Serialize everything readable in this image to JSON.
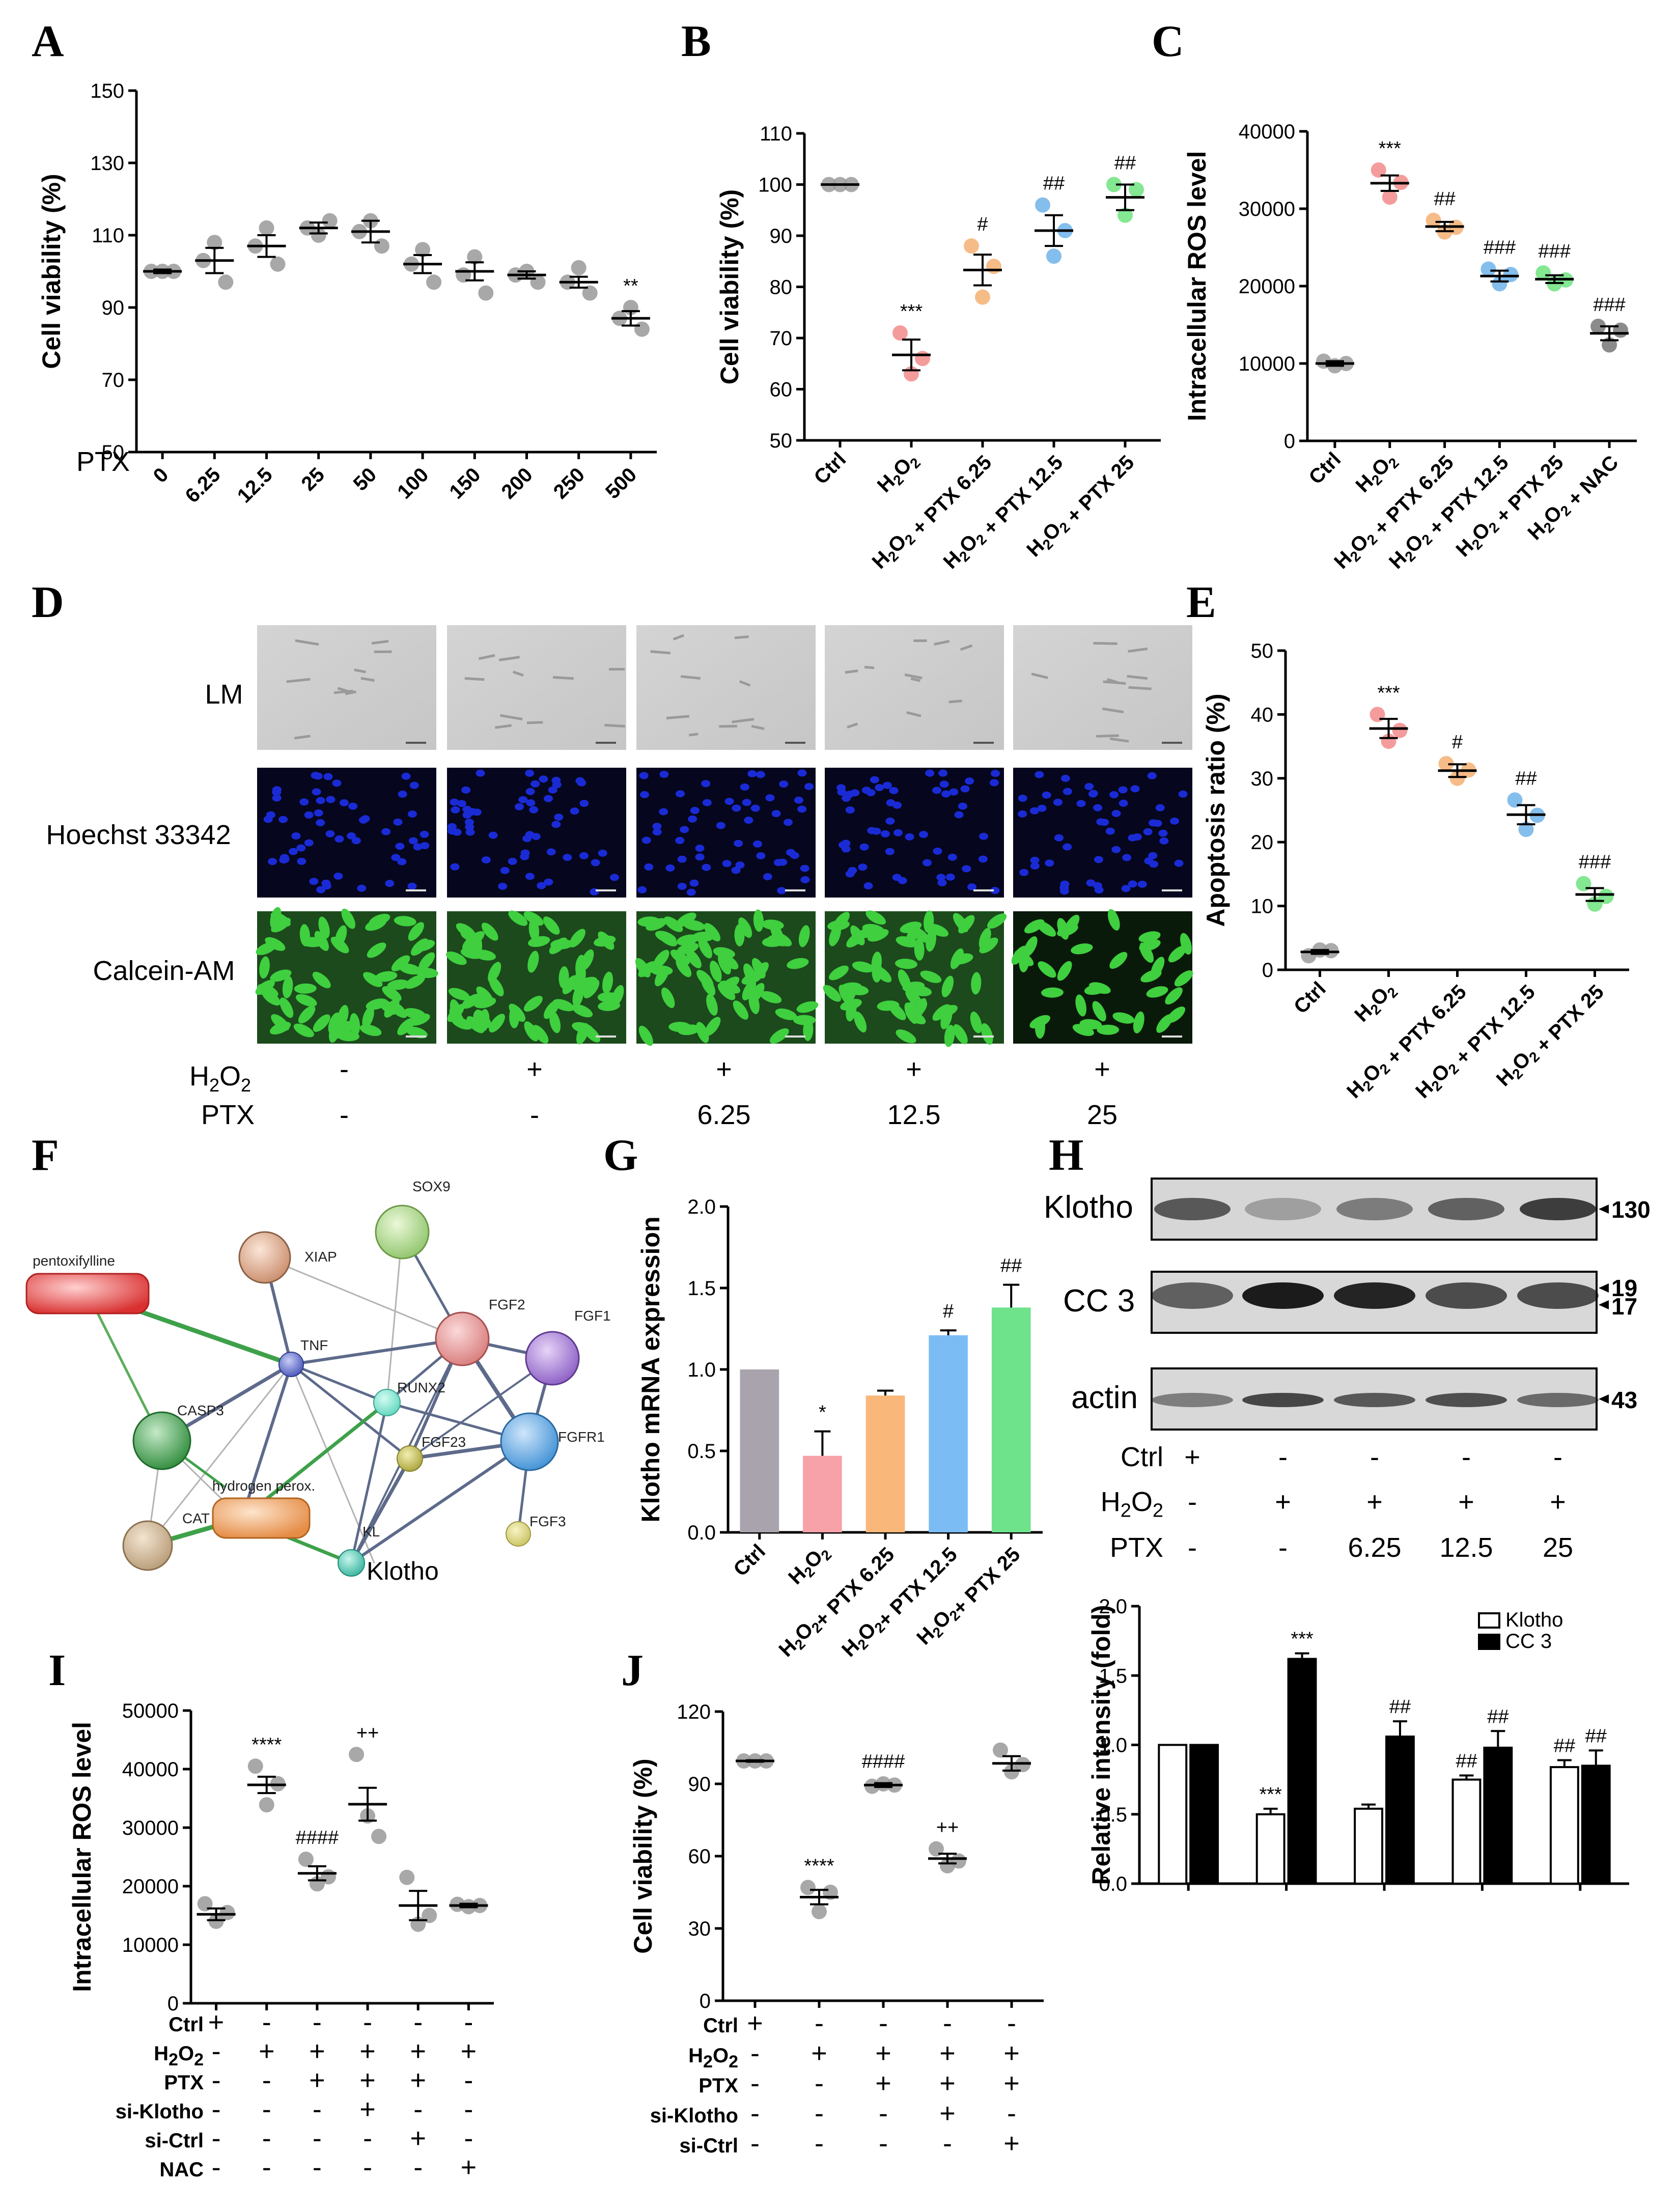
{
  "panels": {
    "A": "A",
    "B": "B",
    "C": "C",
    "D": "D",
    "E": "E",
    "F": "F",
    "G": "G",
    "H": "H",
    "I": "I",
    "J": "J"
  },
  "chart_data": [
    {
      "panel": "A",
      "type": "scatter",
      "ylabel": "Cell viability (%)",
      "xlabel": "PTX",
      "ylim": [
        50,
        150
      ],
      "yticks": [
        50,
        70,
        90,
        110,
        130,
        150
      ],
      "categories": [
        "0",
        "6.25",
        "12.5",
        "25",
        "50",
        "100",
        "150",
        "200",
        "250",
        "500"
      ],
      "means": [
        100,
        103,
        107,
        112,
        111,
        102,
        100,
        99,
        97,
        87
      ],
      "sems": [
        0.5,
        3.5,
        3,
        1.5,
        3,
        2.5,
        2.5,
        1,
        1.5,
        2
      ],
      "points": [
        [
          100,
          100,
          100
        ],
        [
          103,
          108,
          97
        ],
        [
          107,
          112,
          102
        ],
        [
          112,
          110,
          114
        ],
        [
          111,
          114,
          107
        ],
        [
          102,
          106,
          97
        ],
        [
          99,
          104,
          94
        ],
        [
          99,
          100,
          97
        ],
        [
          97,
          101,
          94
        ],
        [
          87,
          90,
          84
        ]
      ],
      "sig": [
        "",
        "",
        "",
        "",
        "",
        "",
        "",
        "",
        "",
        "**"
      ],
      "colors": [
        "#999999",
        "#999999",
        "#999999",
        "#999999",
        "#999999",
        "#999999",
        "#999999",
        "#999999",
        "#999999",
        "#999999"
      ]
    },
    {
      "panel": "B",
      "type": "scatter",
      "ylabel": "Cell viability (%)",
      "ylim": [
        50,
        110
      ],
      "yticks": [
        50,
        60,
        70,
        80,
        90,
        100,
        110
      ],
      "categories": [
        "Ctrl",
        "H2O2",
        "H2O2 + PTX 6.25",
        "H2O2 + PTX 12.5",
        "H2O2 + PTX 25"
      ],
      "means": [
        100,
        66.7,
        83.3,
        91,
        97.5
      ],
      "sems": [
        0,
        3,
        3,
        3,
        2.5
      ],
      "points": [
        [
          100,
          100,
          100
        ],
        [
          71,
          63,
          66
        ],
        [
          88,
          78,
          84
        ],
        [
          96,
          86,
          91
        ],
        [
          100,
          94,
          99
        ]
      ],
      "sig": [
        "",
        "***",
        "#",
        "##",
        "##"
      ],
      "colors": [
        "#9b9b9b",
        "#f28b8b",
        "#f5b073",
        "#6fb3ea",
        "#6ee37f"
      ]
    },
    {
      "panel": "C",
      "type": "scatter",
      "ylabel": "Intracellular ROS level",
      "ylim": [
        0,
        40000
      ],
      "yticks": [
        0,
        10000,
        20000,
        30000,
        40000
      ],
      "categories": [
        "Ctrl",
        "H2O2",
        "H2O2 + PTX 6.25",
        "H2O2 + PTX 12.5",
        "H2O2 + PTX 25",
        "H2O2 + NAC"
      ],
      "means": [
        10000,
        33300,
        27700,
        21300,
        20900,
        13900
      ],
      "sems": [
        300,
        1000,
        600,
        700,
        500,
        900
      ],
      "points": [
        [
          10300,
          9700,
          10000
        ],
        [
          35000,
          31500,
          33400
        ],
        [
          28500,
          27000,
          27600
        ],
        [
          22200,
          20300,
          21500
        ],
        [
          21700,
          20300,
          20800
        ],
        [
          14800,
          12400,
          14300
        ]
      ],
      "sig": [
        "",
        "***",
        "##",
        "###",
        "###",
        "###"
      ],
      "colors": [
        "#9b9b9b",
        "#f28b8b",
        "#f5b073",
        "#6fb3ea",
        "#6ee37f",
        "#777777"
      ]
    },
    {
      "panel": "E",
      "type": "scatter",
      "ylabel": "Apoptosis ratio (%)",
      "ylim": [
        0,
        50
      ],
      "yticks": [
        0,
        10,
        20,
        30,
        40,
        50
      ],
      "categories": [
        "Ctrl",
        "H2O2",
        "H2O2 + PTX 6.25",
        "H2O2 + PTX 12.5",
        "H2O2 + PTX 25"
      ],
      "means": [
        2.8,
        37.8,
        31.2,
        24.3,
        11.8
      ],
      "sems": [
        0.3,
        1.5,
        1,
        1.5,
        1
      ],
      "points": [
        [
          2.2,
          3.1,
          3
        ],
        [
          40,
          35.8,
          37.5
        ],
        [
          32.3,
          30,
          31.3
        ],
        [
          26.6,
          22,
          24.2
        ],
        [
          13.5,
          10.3,
          11.5
        ]
      ],
      "sig": [
        "",
        "***",
        "#",
        "##",
        "###"
      ],
      "colors": [
        "#9b9b9b",
        "#f28b8b",
        "#f5b073",
        "#6fb3ea",
        "#6ee37f"
      ]
    },
    {
      "panel": "G",
      "type": "bar",
      "ylabel": "Klotho mRNA expression",
      "ylim": [
        0,
        2.0
      ],
      "yticks": [
        "0.0",
        "0.5",
        "1.0",
        "1.5",
        "2.0"
      ],
      "categories": [
        "Ctrl",
        "H2O2",
        "H2O2+ PTX 6.25",
        "H2O2+ PTX 12.5",
        "H2O2+ PTX 25"
      ],
      "values": [
        1.0,
        0.47,
        0.84,
        1.21,
        1.38
      ],
      "errors": [
        0,
        0.15,
        0.03,
        0.03,
        0.14
      ],
      "sig": [
        "",
        "*",
        "",
        "#",
        "##"
      ],
      "colors": [
        "#a9a3ad",
        "#f7a1a8",
        "#f9b87a",
        "#7cbcf5",
        "#6ee38c"
      ]
    },
    {
      "panel": "H",
      "type": "bar",
      "ylabel": "Relative intensity  (fold)",
      "ylim": [
        0,
        2.0
      ],
      "yticks": [
        "0.0",
        "0.5",
        "1.0",
        "1.5",
        "2.0"
      ],
      "categories": [
        "Ctrl",
        "H2O2",
        "H2O2 + PTX 6.25",
        "H2O2 + PTX 12.5",
        "H2O2 + PTX 25"
      ],
      "series": [
        {
          "name": "Klotho",
          "values": [
            1.0,
            0.5,
            0.54,
            0.75,
            0.84
          ],
          "errors": [
            0,
            0.04,
            0.03,
            0.03,
            0.05
          ],
          "sig": [
            "",
            "***",
            "",
            "##",
            "##"
          ],
          "color": "#ffffff"
        },
        {
          "name": "CC 3",
          "values": [
            1.0,
            1.62,
            1.06,
            0.98,
            0.85
          ],
          "errors": [
            0,
            0.04,
            0.11,
            0.12,
            0.11
          ],
          "sig": [
            "",
            "***",
            "##",
            "##",
            "##"
          ],
          "color": "#000000"
        }
      ]
    },
    {
      "panel": "I",
      "type": "scatter",
      "ylabel": "Intracellular ROS level",
      "ylim": [
        0,
        50000
      ],
      "yticks": [
        0,
        10000,
        20000,
        30000,
        40000,
        50000
      ],
      "categories": [
        "1",
        "2",
        "3",
        "4",
        "5",
        "6"
      ],
      "means": [
        15200,
        37300,
        22200,
        34000,
        16700,
        16700
      ],
      "sems": [
        1000,
        1400,
        1200,
        2800,
        2500,
        300
      ],
      "points": [
        [
          17000,
          14000,
          15500
        ],
        [
          40500,
          33900,
          37500
        ],
        [
          24600,
          20400,
          21600
        ],
        [
          42500,
          32000,
          28500
        ],
        [
          21500,
          13500,
          15000
        ],
        [
          16900,
          16500,
          16700
        ]
      ],
      "sig": [
        "",
        "****",
        "####",
        "++",
        "",
        ""
      ],
      "colors": [
        "#999999",
        "#999999",
        "#999999",
        "#999999",
        "#999999",
        "#999999"
      ],
      "rows": [
        {
          "label": "Ctrl",
          "vals": [
            "+",
            "-",
            "-",
            "-",
            "-",
            "-"
          ]
        },
        {
          "label": "H2O2",
          "vals": [
            "-",
            "+",
            "+",
            "+",
            "+",
            "+"
          ]
        },
        {
          "label": "PTX",
          "vals": [
            "-",
            "-",
            "+",
            "+",
            "+",
            "-"
          ]
        },
        {
          "label": "si-Klotho",
          "vals": [
            "-",
            "-",
            "-",
            "+",
            "-",
            "-"
          ]
        },
        {
          "label": "si-Ctrl",
          "vals": [
            "-",
            "-",
            "-",
            "-",
            "+",
            "-"
          ]
        },
        {
          "label": "NAC",
          "vals": [
            "-",
            "-",
            "-",
            "-",
            "-",
            "+"
          ]
        }
      ]
    },
    {
      "panel": "J",
      "type": "scatter",
      "ylabel": "Cell viability (%)",
      "ylim": [
        0,
        120
      ],
      "yticks": [
        0,
        30,
        60,
        90,
        120
      ],
      "categories": [
        "1",
        "2",
        "3",
        "4",
        "5"
      ],
      "means": [
        99.5,
        43,
        89.5,
        59,
        98.5
      ],
      "sems": [
        0.3,
        3,
        0.8,
        2,
        3
      ],
      "points": [
        [
          99.5,
          99.5,
          99.5
        ],
        [
          47,
          37,
          45
        ],
        [
          89,
          90,
          89.5
        ],
        [
          63,
          56,
          58
        ],
        [
          104,
          95,
          98
        ]
      ],
      "sig": [
        "",
        "****",
        "####",
        "++",
        ""
      ],
      "colors": [
        "#999999",
        "#999999",
        "#999999",
        "#999999",
        "#999999"
      ],
      "rows": [
        {
          "label": "Ctrl",
          "vals": [
            "+",
            "-",
            "-",
            "-",
            "-"
          ]
        },
        {
          "label": "H2O2",
          "vals": [
            "-",
            "+",
            "+",
            "+",
            "+"
          ]
        },
        {
          "label": "PTX",
          "vals": [
            "-",
            "-",
            "+",
            "+",
            "+"
          ]
        },
        {
          "label": "si-Klotho",
          "vals": [
            "-",
            "-",
            "-",
            "+",
            "-"
          ]
        },
        {
          "label": "si-Ctrl",
          "vals": [
            "-",
            "-",
            "-",
            "-",
            "+"
          ]
        }
      ]
    }
  ],
  "panel_D": {
    "rows": [
      "LM",
      "Hoechst 33342",
      "Calcein-AM"
    ],
    "h2o2_label": "H2O2",
    "ptx_label": "PTX",
    "h2o2": [
      "-",
      "+",
      "+",
      "+",
      "+"
    ],
    "ptx": [
      "-",
      "-",
      "6.25",
      "12.5",
      "25"
    ]
  },
  "panel_F": {
    "nodes": [
      "pentoxifylline",
      "XIAP",
      "SOX9",
      "FGF2",
      "FGF1",
      "TNF",
      "RUNX2",
      "CASP3",
      "FGF23",
      "FGFR1",
      "hydrogen perox.",
      "CAT",
      "KL",
      "FGF3",
      "Klotho"
    ]
  },
  "panel_H_blot": {
    "bands": [
      "Klotho",
      "CC 3",
      "actin"
    ],
    "kda": [
      "130",
      "19",
      "17",
      "43"
    ],
    "rows": [
      {
        "label": "Ctrl",
        "vals": [
          "+",
          "-",
          "-",
          "-",
          "-"
        ]
      },
      {
        "label": "H2O2",
        "vals": [
          "-",
          "+",
          "+",
          "+",
          "+"
        ]
      },
      {
        "label": "PTX",
        "vals": [
          "-",
          "-",
          "6.25",
          "12.5",
          "25"
        ]
      }
    ]
  }
}
